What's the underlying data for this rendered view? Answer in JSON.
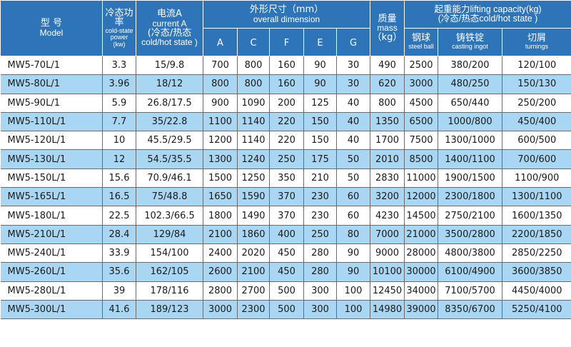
{
  "header": {
    "model_cn": "型  号",
    "model_en": "Model",
    "power_cn": "冷态功率",
    "power_en": "cold-state power",
    "power_unit": "(kw)",
    "current_cn": "电流A",
    "current_en": "current A",
    "current_cn2": "(冷态/热态",
    "current_en2": "cold/hot state )",
    "dim_cn": "外形尺寸（mm）",
    "dim_en": "overall dimension",
    "dim_cols": [
      "A",
      "C",
      "F",
      "E",
      "G"
    ],
    "mass_cn": "质量",
    "mass_en": "mass",
    "mass_unit": "（kg）",
    "lift_line1": "起重能力lifting capacity(kg)",
    "lift_line2": "(冷态/热态cold/hot state )",
    "steel_cn": "钢球",
    "steel_en": "steel ball",
    "ingot_cn": "铸铁锭",
    "ingot_en": "casting ingot",
    "turn_cn": "切屑",
    "turn_en": "turnings"
  },
  "rows": [
    {
      "model": "MW5-70L/1",
      "power": "3.3",
      "current": "15/9.8",
      "A": "700",
      "C": "800",
      "F": "160",
      "E": "90",
      "G": "30",
      "mass": "490",
      "steel": "2500",
      "ingot": "380/200",
      "turn": "120/100"
    },
    {
      "model": "MW5-80L/1",
      "power": "3.96",
      "current": "18/12",
      "A": "800",
      "C": "800",
      "F": "160",
      "E": "90",
      "G": "30",
      "mass": "620",
      "steel": "3000",
      "ingot": "480/250",
      "turn": "150/130"
    },
    {
      "model": "MW5-90L/1",
      "power": "5.9",
      "current": "26.8/17.5",
      "A": "900",
      "C": "1090",
      "F": "200",
      "E": "125",
      "G": "40",
      "mass": "800",
      "steel": "4500",
      "ingot": "650/440",
      "turn": "250/200"
    },
    {
      "model": "MW5-110L/1",
      "power": "7.7",
      "current": "35/22.8",
      "A": "1100",
      "C": "1140",
      "F": "220",
      "E": "150",
      "G": "40",
      "mass": "1350",
      "steel": "6500",
      "ingot": "1000/800",
      "turn": "450/400"
    },
    {
      "model": "MW5-120L/1",
      "power": "10",
      "current": "45.5/29.5",
      "A": "1200",
      "C": "1140",
      "F": "220",
      "E": "150",
      "G": "40",
      "mass": "1700",
      "steel": "7500",
      "ingot": "1300/1000",
      "turn": "600/500"
    },
    {
      "model": "MW5-130L/1",
      "power": "12",
      "current": "54.5/35.5",
      "A": "1300",
      "C": "1240",
      "F": "250",
      "E": "175",
      "G": "50",
      "mass": "2010",
      "steel": "8500",
      "ingot": "1400/1100",
      "turn": "700/600"
    },
    {
      "model": "MW5-150L/1",
      "power": "15.6",
      "current": "70.9/46.1",
      "A": "1500",
      "C": "1250",
      "F": "350",
      "E": "210",
      "G": "50",
      "mass": "2830",
      "steel": "11000",
      "ingot": "1900/1500",
      "turn": "1100/900"
    },
    {
      "model": "MW5-165L/1",
      "power": "16.5",
      "current": "75/48.8",
      "A": "1650",
      "C": "1590",
      "F": "370",
      "E": "230",
      "G": "60",
      "mass": "3200",
      "steel": "12000",
      "ingot": "2300/1800",
      "turn": "1300/1100"
    },
    {
      "model": "MW5-180L/1",
      "power": "22.5",
      "current": "102.3/66.5",
      "A": "1800",
      "C": "1490",
      "F": "370",
      "E": "230",
      "G": "60",
      "mass": "4230",
      "steel": "14500",
      "ingot": "2750/2100",
      "turn": "1600/1350"
    },
    {
      "model": "MW5-210L/1",
      "power": "28.4",
      "current": "129/84",
      "A": "2100",
      "C": "1860",
      "F": "400",
      "E": "250",
      "G": "80",
      "mass": "7000",
      "steel": "21000",
      "ingot": "3500/2800",
      "turn": "2200/1850"
    },
    {
      "model": "MW5-240L/1",
      "power": "33.9",
      "current": "154/100",
      "A": "2400",
      "C": "2020",
      "F": "450",
      "E": "280",
      "G": "90",
      "mass": "9000",
      "steel": "28000",
      "ingot": "4800/3800",
      "turn": "2850/2250"
    },
    {
      "model": "MW5-260L/1",
      "power": "35.6",
      "current": "162/105",
      "A": "2600",
      "C": "2100",
      "F": "450",
      "E": "280",
      "G": "90",
      "mass": "10100",
      "steel": "30000",
      "ingot": "6100/4900",
      "turn": "3600/3850"
    },
    {
      "model": "MW5-280L/1",
      "power": "39",
      "current": "178/116",
      "A": "2800",
      "C": "2700",
      "F": "500",
      "E": "300",
      "G": "100",
      "mass": "12450",
      "steel": "34000",
      "ingot": "7100/5700",
      "turn": "4450/4000"
    },
    {
      "model": "MW5-300L/1",
      "power": "41.6",
      "current": "189/123",
      "A": "3000",
      "C": "2300",
      "F": "500",
      "E": "300",
      "G": "100",
      "mass": "14980",
      "steel": "39000",
      "ingot": "8350/6700",
      "turn": "5250/4100"
    }
  ]
}
